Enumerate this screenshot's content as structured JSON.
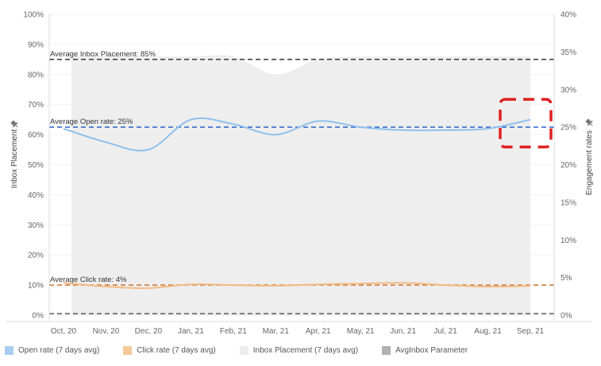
{
  "chart_data": {
    "type": "line",
    "y_left": {
      "label": "Inbox Placement",
      "range": [
        0,
        100
      ],
      "ticks": [
        "0%",
        "10%",
        "20%",
        "30%",
        "40%",
        "50%",
        "60%",
        "70%",
        "80%",
        "90%",
        "100%"
      ]
    },
    "y_right": {
      "label": "Engagement rates",
      "range": [
        0,
        40
      ],
      "ticks": [
        "0%",
        "5%",
        "10%",
        "15%",
        "20%",
        "25%",
        "30%",
        "35%",
        "40%"
      ]
    },
    "x_ticks": [
      "Oct, 20",
      "Nov, 20",
      "Dec, 20",
      "Jan, 21",
      "Feb, 21",
      "Mar, 21",
      "Apr, 21",
      "May, 21",
      "Jun, 21",
      "Jul, 21",
      "Aug, 21",
      "Sep, 21"
    ],
    "series": [
      {
        "name": "Inbox Placement (7 days avg)",
        "axis": "left",
        "color": "#eeeeee",
        "x": [
          "Oct, 20",
          "Nov, 20",
          "Dec, 20",
          "Jan, 21",
          "Feb, 21",
          "Mar, 21",
          "Apr, 21",
          "May, 21",
          "Jun, 21",
          "Jul, 21",
          "Aug, 21",
          "Sep, 21"
        ],
        "values": [
          86,
          86,
          86,
          86,
          86,
          80,
          85,
          86,
          86,
          86,
          86,
          86
        ]
      },
      {
        "name": "Open rate (7 days avg)",
        "axis": "right",
        "color": "#8ec0ec",
        "x": [
          "Oct, 20",
          "Nov, 20",
          "Dec, 20",
          "Jan, 21",
          "Feb, 21",
          "Mar, 21",
          "Apr, 21",
          "May, 21",
          "Jun, 21",
          "Jul, 21",
          "Aug, 21",
          "Sep, 21"
        ],
        "values": [
          24.8,
          23.0,
          22.0,
          26.0,
          25.4,
          24.0,
          25.8,
          25.0,
          24.6,
          24.6,
          24.8,
          26.0
        ]
      },
      {
        "name": "Click rate (7 days avg)",
        "axis": "right",
        "color": "#f2bb85",
        "x": [
          "Oct, 20",
          "Nov, 20",
          "Dec, 20",
          "Jan, 21",
          "Feb, 21",
          "Mar, 21",
          "Apr, 21",
          "May, 21",
          "Jun, 21",
          "Jul, 21",
          "Aug, 21",
          "Sep, 21"
        ],
        "values": [
          4.3,
          3.8,
          3.6,
          4.1,
          4.0,
          3.9,
          4.1,
          4.2,
          4.3,
          4.0,
          3.8,
          3.9
        ]
      }
    ],
    "reference_lines": [
      {
        "label": "Average Inbox Placement: 85%",
        "axis": "left",
        "value": 85,
        "color": "#444444"
      },
      {
        "label": "Average Open rate: 25%",
        "axis": "right",
        "value": 25,
        "color": "#2a63c9"
      },
      {
        "label": "Average Click rate: 4%",
        "axis": "right",
        "value": 4,
        "color": "#cf7d3a"
      },
      {
        "label": "",
        "axis": "left",
        "value": 0.5,
        "color": "#666666"
      }
    ],
    "highlight": {
      "x_range": [
        "Sep, 21",
        "Sep, 21"
      ],
      "y_range_right": [
        23,
        27
      ],
      "color": "#e02020"
    },
    "legend": [
      {
        "label": "Open rate (7 days avg)",
        "color": "#a9cdf0"
      },
      {
        "label": "Click rate (7 days avg)",
        "color": "#f5c89b"
      },
      {
        "label": "Inbox Placement (7 days avg)",
        "color": "#ececec"
      },
      {
        "label": "AvgInbox Parameter",
        "color": "#b0b0b0"
      }
    ],
    "legend_position": "bottom",
    "grid": true
  }
}
